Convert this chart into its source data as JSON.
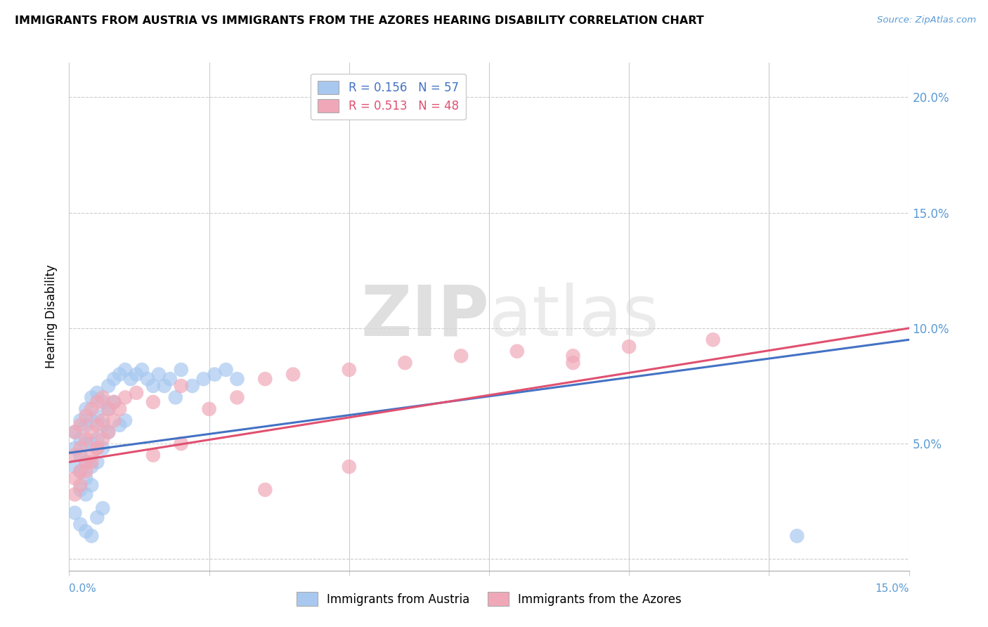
{
  "title": "IMMIGRANTS FROM AUSTRIA VS IMMIGRANTS FROM THE AZORES HEARING DISABILITY CORRELATION CHART",
  "source": "Source: ZipAtlas.com",
  "ylabel": "Hearing Disability",
  "xlim": [
    0.0,
    0.15
  ],
  "ylim": [
    -0.005,
    0.215
  ],
  "yticks": [
    0.0,
    0.05,
    0.1,
    0.15,
    0.2
  ],
  "ytick_labels": [
    "",
    "5.0%",
    "10.0%",
    "15.0%",
    "20.0%"
  ],
  "austria_R": 0.156,
  "austria_N": 57,
  "azores_R": 0.513,
  "azores_N": 48,
  "austria_color": "#a8c8f0",
  "azores_color": "#f0a8b8",
  "austria_line_color": "#4472c4",
  "azores_line_color": "#e05070",
  "legend_label_austria": "Immigrants from Austria",
  "legend_label_azores": "Immigrants from the Azores",
  "watermark_zip": "ZIP",
  "watermark_atlas": "atlas",
  "austria_x": [
    0.001,
    0.001,
    0.001,
    0.002,
    0.002,
    0.002,
    0.002,
    0.002,
    0.003,
    0.003,
    0.003,
    0.003,
    0.003,
    0.003,
    0.004,
    0.004,
    0.004,
    0.004,
    0.004,
    0.005,
    0.005,
    0.005,
    0.005,
    0.006,
    0.006,
    0.006,
    0.007,
    0.007,
    0.007,
    0.008,
    0.008,
    0.009,
    0.009,
    0.01,
    0.01,
    0.011,
    0.012,
    0.013,
    0.014,
    0.015,
    0.016,
    0.017,
    0.018,
    0.019,
    0.02,
    0.022,
    0.024,
    0.026,
    0.028,
    0.03,
    0.001,
    0.002,
    0.003,
    0.004,
    0.005,
    0.006,
    0.13
  ],
  "austria_y": [
    0.055,
    0.048,
    0.04,
    0.06,
    0.052,
    0.045,
    0.038,
    0.03,
    0.065,
    0.058,
    0.05,
    0.042,
    0.035,
    0.028,
    0.07,
    0.06,
    0.05,
    0.04,
    0.032,
    0.072,
    0.062,
    0.052,
    0.042,
    0.068,
    0.058,
    0.048,
    0.075,
    0.065,
    0.055,
    0.078,
    0.068,
    0.08,
    0.058,
    0.082,
    0.06,
    0.078,
    0.08,
    0.082,
    0.078,
    0.075,
    0.08,
    0.075,
    0.078,
    0.07,
    0.082,
    0.075,
    0.078,
    0.08,
    0.082,
    0.078,
    0.02,
    0.015,
    0.012,
    0.01,
    0.018,
    0.022,
    0.01
  ],
  "azores_x": [
    0.001,
    0.001,
    0.001,
    0.002,
    0.002,
    0.002,
    0.003,
    0.003,
    0.003,
    0.004,
    0.004,
    0.004,
    0.005,
    0.005,
    0.005,
    0.006,
    0.006,
    0.007,
    0.008,
    0.009,
    0.01,
    0.012,
    0.015,
    0.02,
    0.025,
    0.03,
    0.035,
    0.04,
    0.05,
    0.06,
    0.07,
    0.08,
    0.09,
    0.1,
    0.115,
    0.001,
    0.002,
    0.003,
    0.004,
    0.005,
    0.006,
    0.007,
    0.008,
    0.015,
    0.02,
    0.035,
    0.05,
    0.09
  ],
  "azores_y": [
    0.055,
    0.045,
    0.035,
    0.058,
    0.048,
    0.038,
    0.062,
    0.052,
    0.042,
    0.065,
    0.055,
    0.045,
    0.068,
    0.058,
    0.048,
    0.07,
    0.06,
    0.065,
    0.068,
    0.065,
    0.07,
    0.072,
    0.068,
    0.075,
    0.065,
    0.07,
    0.078,
    0.08,
    0.082,
    0.085,
    0.088,
    0.09,
    0.088,
    0.092,
    0.095,
    0.028,
    0.032,
    0.038,
    0.042,
    0.048,
    0.052,
    0.055,
    0.06,
    0.045,
    0.05,
    0.03,
    0.04,
    0.085
  ],
  "austria_trendline_start": 0.046,
  "austria_trendline_end": 0.095,
  "azores_trendline_start": 0.042,
  "azores_trendline_end": 0.1
}
